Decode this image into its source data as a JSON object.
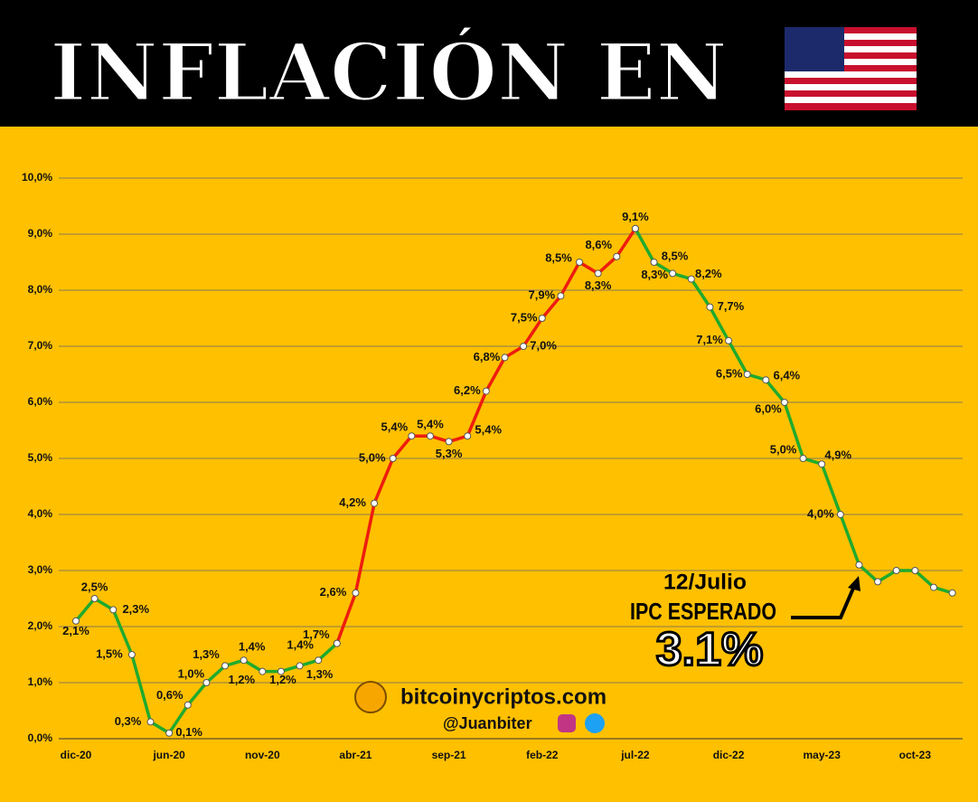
{
  "chart_data": {
    "type": "line",
    "title": "INFLACIÓN EN",
    "categories": [
      "dic-20",
      null,
      null,
      null,
      null,
      "jun-20",
      null,
      null,
      null,
      null,
      "nov-20",
      null,
      null,
      null,
      null,
      "abr-21",
      null,
      null,
      null,
      null,
      "sep-21",
      null,
      null,
      null,
      null,
      "feb-22",
      null,
      null,
      null,
      null,
      "jul-22",
      null,
      null,
      null,
      null,
      "dic-22",
      null,
      null,
      null,
      null,
      "may-23",
      null,
      null,
      null,
      null,
      "oct-23",
      null,
      null
    ],
    "series": [
      {
        "color": "#1faa2e",
        "values": [
          2.1,
          2.5,
          2.3,
          1.5,
          0.3,
          0.1,
          0.6,
          1.0,
          1.3,
          1.4,
          1.2,
          1.2,
          1.3,
          1.4,
          1.7,
          null,
          null,
          null,
          null,
          null,
          null,
          null,
          null,
          null,
          null,
          null,
          null,
          null,
          null,
          null,
          9.1,
          8.5,
          8.3,
          8.2,
          7.7,
          7.1,
          6.5,
          6.4,
          6.0,
          5.0,
          4.9,
          4.0,
          3.1,
          2.8,
          3.0,
          3.0,
          2.7,
          2.6
        ],
        "value_labels": [
          "2,1%",
          "2,5%",
          "2,3%",
          "1,5%",
          "0,3%",
          "0,1%",
          "0,6%",
          "1,0%",
          "1,3%",
          "1,4%",
          "1,2%",
          "1,2%",
          "1,3%",
          "1,4%",
          null,
          null,
          null,
          null,
          null,
          null,
          null,
          null,
          null,
          null,
          null,
          null,
          null,
          null,
          null,
          null,
          null,
          "8,5%",
          "8,3%",
          "8,2%",
          "7,7%",
          "7,1%",
          "6,5%",
          "6,4%",
          "6,0%",
          "5,0%",
          "4,9%",
          "4,0%",
          null,
          null,
          null,
          null,
          null,
          null
        ]
      },
      {
        "color": "#ee1c0e",
        "values": [
          null,
          null,
          null,
          null,
          null,
          null,
          null,
          null,
          null,
          null,
          null,
          null,
          null,
          null,
          1.7,
          2.6,
          4.2,
          5.0,
          5.4,
          5.4,
          5.3,
          5.4,
          6.2,
          6.8,
          7.0,
          7.5,
          7.9,
          8.5,
          8.3,
          8.6,
          9.1,
          null,
          null,
          null,
          null,
          null,
          null,
          null,
          null,
          null,
          null,
          null,
          null,
          null,
          null,
          null,
          null,
          null
        ],
        "value_labels": [
          null,
          null,
          null,
          null,
          null,
          null,
          null,
          null,
          null,
          null,
          null,
          null,
          null,
          null,
          "1,7%",
          "2,6%",
          "4,2%",
          "5,0%",
          "5,4%",
          "5,4%",
          "5,3%",
          "5,4%",
          "6,2%",
          "6,8%",
          "7,0%",
          "7,5%",
          "7,9%",
          "8,5%",
          "8,3%",
          "8,6%",
          "9,1%",
          null,
          null,
          null,
          null,
          null,
          null,
          null,
          null,
          null,
          null,
          null,
          null,
          null,
          null,
          null,
          null,
          null
        ]
      }
    ],
    "ylim": [
      0,
      10
    ],
    "yticks": [
      {
        "value": 0,
        "label": "0,0%"
      },
      {
        "value": 1,
        "label": "1,0%"
      },
      {
        "value": 2,
        "label": "2,0%"
      },
      {
        "value": 3,
        "label": "3,0%"
      },
      {
        "value": 4,
        "label": "4,0%"
      },
      {
        "value": 5,
        "label": "5,0%"
      },
      {
        "value": 6,
        "label": "6,0%"
      },
      {
        "value": 7,
        "label": "7,0%"
      },
      {
        "value": 8,
        "label": "8,0%"
      },
      {
        "value": 9,
        "label": "9,0%"
      },
      {
        "value": 10,
        "label": "10,0%"
      }
    ],
    "grid": true,
    "annotations": [
      "12/Julio",
      "IPC ESPERADO",
      "3.1%"
    ],
    "watermark": [
      "bitcoinycriptos.com",
      "@Juanbiter"
    ]
  }
}
